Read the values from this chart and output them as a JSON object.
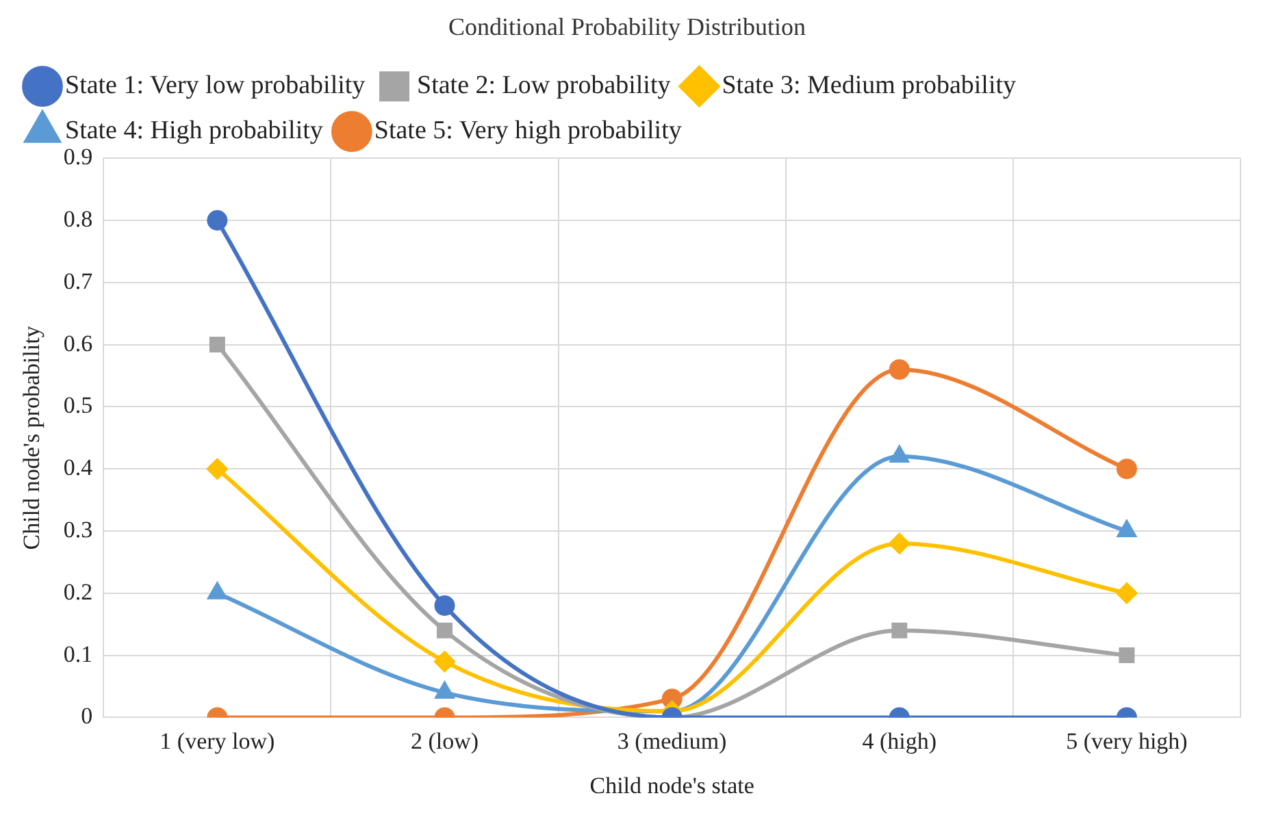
{
  "chart_data": {
    "type": "line",
    "title": "Conditional Probability Distribution",
    "xlabel": "Child node's state",
    "ylabel": "Child node's probability",
    "categories": [
      "1 (very low)",
      "2 (low)",
      "3 (medium)",
      "4 (high)",
      "5 (very high)"
    ],
    "series": [
      {
        "name": "State 1: Very low probability",
        "color": "#4472c4",
        "marker": "circle",
        "values": [
          0.8,
          0.18,
          0,
          0,
          0
        ]
      },
      {
        "name": "State 2: Low probability",
        "color": "#a5a5a5",
        "marker": "square",
        "values": [
          0.6,
          0.14,
          0,
          0.14,
          0.1
        ]
      },
      {
        "name": "State 3: Medium probability",
        "color": "#ffc000",
        "marker": "diamond",
        "values": [
          0.4,
          0.09,
          0.01,
          0.28,
          0.2
        ]
      },
      {
        "name": "State 4: High probability",
        "color": "#5b9bd5",
        "marker": "triangle",
        "values": [
          0.2,
          0.04,
          0.01,
          0.42,
          0.3
        ]
      },
      {
        "name": "State 5: Very high probability",
        "color": "#ed7d31",
        "marker": "circle",
        "values": [
          0,
          0,
          0.03,
          0.56,
          0.4
        ]
      }
    ],
    "ylim": [
      0,
      0.9
    ],
    "yticks": [
      0,
      0.1,
      0.2,
      0.3,
      0.4,
      0.5,
      0.6,
      0.7,
      0.8,
      0.9
    ],
    "grid": true,
    "legend": "top"
  }
}
